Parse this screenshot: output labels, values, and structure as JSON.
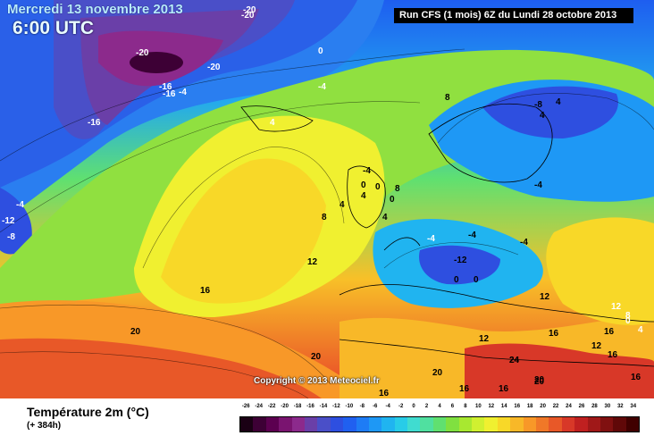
{
  "header": {
    "date": "Mercredi 13 novembre 2013",
    "time": "6:00 UTC",
    "run_info": "Run CFS (1 mois) 6Z du Lundi 28 octobre 2013"
  },
  "copyright": "Copyright © 2013 Meteociel.fr",
  "footer": {
    "variable": "Température 2m (°C)",
    "lead_time": "(+ 384h)"
  },
  "legend": {
    "ticks": [
      "-26",
      "-24",
      "-22",
      "-20",
      "-18",
      "-16",
      "-14",
      "-12",
      "-10",
      "-8",
      "-6",
      "-4",
      "-2",
      "0",
      "2",
      "4",
      "6",
      "8",
      "10",
      "12",
      "14",
      "16",
      "18",
      "20",
      "22",
      "24",
      "26",
      "28",
      "30",
      "32",
      "34"
    ],
    "colors": [
      "#1a0014",
      "#3d0035",
      "#5c0050",
      "#7a1470",
      "#8c2a8c",
      "#6a3fa8",
      "#4a4fc8",
      "#2e4fe0",
      "#2060f0",
      "#1e7cf5",
      "#1e98f5",
      "#20b4f0",
      "#28cce8",
      "#40dcd0",
      "#50e0a0",
      "#60e070",
      "#80e040",
      "#a8e830",
      "#d0f030",
      "#f0f030",
      "#f8d828",
      "#f8b828",
      "#f89828",
      "#f07828",
      "#e85828",
      "#d83828",
      "#c02020",
      "#a01818",
      "#801010",
      "#600808",
      "#400000"
    ]
  },
  "map_labels": [
    {
      "text": "-20",
      "tone": "white"
    },
    {
      "text": "-20",
      "tone": "white"
    },
    {
      "text": "-20",
      "tone": "white"
    },
    {
      "text": "-20",
      "tone": "white"
    },
    {
      "text": "-16",
      "tone": "white"
    },
    {
      "text": "-16",
      "tone": "white"
    },
    {
      "text": "-16",
      "tone": "white"
    },
    {
      "text": "-4",
      "tone": "white"
    },
    {
      "text": "0",
      "tone": "white"
    },
    {
      "text": "-4",
      "tone": "white"
    },
    {
      "text": "4",
      "tone": "white"
    },
    {
      "text": "-12",
      "tone": "white"
    },
    {
      "text": "-8",
      "tone": "white"
    },
    {
      "text": "-4",
      "tone": "white"
    },
    {
      "text": "8",
      "tone": "dark"
    },
    {
      "text": "4",
      "tone": "dark"
    },
    {
      "text": "4",
      "tone": "dark"
    },
    {
      "text": "-8",
      "tone": "dark"
    },
    {
      "text": "-4",
      "tone": "dark"
    },
    {
      "text": "0",
      "tone": "dark"
    },
    {
      "text": "4",
      "tone": "dark"
    },
    {
      "text": "-4",
      "tone": "dark"
    },
    {
      "text": "0",
      "tone": "dark"
    },
    {
      "text": "0",
      "tone": "dark"
    },
    {
      "text": "8",
      "tone": "dark"
    },
    {
      "text": "4",
      "tone": "dark"
    },
    {
      "text": "8",
      "tone": "dark"
    },
    {
      "text": "4",
      "tone": "dark"
    },
    {
      "text": "-4",
      "tone": "dark"
    },
    {
      "text": "-4",
      "tone": "dark"
    },
    {
      "text": "-12",
      "tone": "dark"
    },
    {
      "text": "0",
      "tone": "dark"
    },
    {
      "text": "0",
      "tone": "dark"
    },
    {
      "text": "12",
      "tone": "dark"
    },
    {
      "text": "12",
      "tone": "dark"
    },
    {
      "text": "16",
      "tone": "dark"
    },
    {
      "text": "16",
      "tone": "dark"
    },
    {
      "text": "20",
      "tone": "dark"
    },
    {
      "text": "20",
      "tone": "dark"
    },
    {
      "text": "24",
      "tone": "dark"
    },
    {
      "text": "20",
      "tone": "dark"
    },
    {
      "text": "20",
      "tone": "dark"
    },
    {
      "text": "16",
      "tone": "dark"
    },
    {
      "text": "16",
      "tone": "dark"
    },
    {
      "text": "12",
      "tone": "white"
    },
    {
      "text": "8",
      "tone": "white"
    },
    {
      "text": "12",
      "tone": "dark"
    },
    {
      "text": "16",
      "tone": "dark"
    },
    {
      "text": "16",
      "tone": "dark"
    },
    {
      "text": "16",
      "tone": "dark"
    },
    {
      "text": "4",
      "tone": "white"
    },
    {
      "text": "0",
      "tone": "white"
    },
    {
      "text": "12",
      "tone": "dark"
    },
    {
      "text": "24",
      "tone": "dark"
    },
    {
      "text": "20",
      "tone": "dark"
    },
    {
      "text": "16",
      "tone": "dark"
    },
    {
      "text": "-4",
      "tone": "white"
    }
  ]
}
